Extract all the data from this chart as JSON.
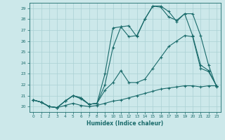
{
  "xlabel": "Humidex (Indice chaleur)",
  "xlim": [
    -0.5,
    23.5
  ],
  "ylim": [
    19.5,
    29.5
  ],
  "xticks": [
    0,
    1,
    2,
    3,
    4,
    5,
    6,
    7,
    8,
    9,
    10,
    11,
    12,
    13,
    14,
    15,
    16,
    17,
    18,
    19,
    20,
    21,
    22,
    23
  ],
  "yticks": [
    20,
    21,
    22,
    23,
    24,
    25,
    26,
    27,
    28,
    29
  ],
  "bg_color": "#cce8ea",
  "grid_color": "#aad0d4",
  "line_color": "#1a6b6b",
  "line1_x": [
    0,
    1,
    2,
    3,
    4,
    5,
    6,
    7,
    8,
    9,
    10,
    11,
    12,
    13,
    14,
    15,
    16,
    17,
    18,
    19,
    20,
    21,
    22,
    23
  ],
  "line1_y": [
    20.6,
    20.4,
    20.0,
    19.9,
    20.1,
    20.3,
    20.1,
    20.0,
    20.1,
    20.3,
    20.5,
    20.6,
    20.8,
    21.0,
    21.2,
    21.4,
    21.6,
    21.7,
    21.8,
    21.9,
    21.9,
    21.8,
    21.9,
    21.9
  ],
  "line2_x": [
    0,
    1,
    2,
    3,
    4,
    5,
    6,
    7,
    8,
    9,
    10,
    11,
    12,
    13,
    14,
    15,
    16,
    17,
    18,
    19,
    20,
    21,
    22,
    23
  ],
  "line2_y": [
    20.6,
    20.4,
    20.0,
    19.9,
    20.5,
    21.0,
    20.7,
    20.2,
    20.3,
    21.5,
    22.2,
    23.3,
    22.2,
    22.2,
    22.5,
    23.5,
    24.5,
    25.5,
    26.0,
    26.5,
    26.4,
    23.5,
    23.2,
    21.9
  ],
  "line3_x": [
    0,
    1,
    2,
    3,
    4,
    5,
    6,
    7,
    8,
    9,
    10,
    11,
    12,
    13,
    14,
    15,
    16,
    17,
    18,
    19,
    20,
    21,
    22,
    23
  ],
  "line3_y": [
    20.6,
    20.4,
    20.0,
    19.9,
    20.5,
    21.0,
    20.8,
    20.2,
    20.3,
    23.0,
    27.2,
    27.3,
    26.4,
    26.5,
    28.0,
    29.2,
    29.2,
    28.7,
    27.8,
    28.5,
    28.5,
    26.5,
    23.8,
    21.8
  ],
  "line4_x": [
    0,
    1,
    2,
    3,
    4,
    5,
    6,
    7,
    8,
    9,
    10,
    11,
    12,
    13,
    14,
    15,
    16,
    17,
    18,
    19,
    20,
    21,
    22,
    23
  ],
  "line4_y": [
    20.6,
    20.4,
    20.0,
    19.9,
    20.5,
    21.0,
    20.8,
    20.2,
    20.3,
    22.0,
    25.4,
    27.3,
    27.4,
    26.4,
    28.0,
    29.2,
    29.1,
    28.2,
    27.9,
    28.5,
    26.5,
    23.8,
    23.3,
    21.9
  ]
}
